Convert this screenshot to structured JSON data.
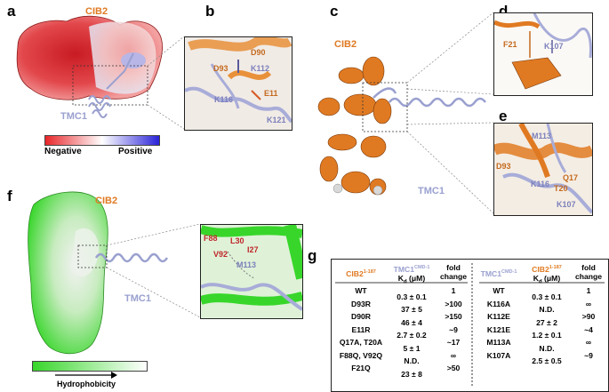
{
  "panels": {
    "a": "a",
    "b": "b",
    "c": "c",
    "d": "d",
    "e": "e",
    "f": "f",
    "g": "g"
  },
  "a": {
    "cib2": "CIB2",
    "tmc1": "TMC1",
    "colorbar": {
      "negative": "Negative",
      "positive": "Positive",
      "colors": [
        "#e8262a",
        "#ffffff",
        "#2a23d8"
      ]
    }
  },
  "b": {
    "residues": [
      "D90",
      "D93",
      "K112",
      "E11",
      "K116",
      "K121"
    ]
  },
  "c": {
    "cib2": "CIB2",
    "tmc1": "TMC1"
  },
  "d": {
    "residues": [
      "F21",
      "K107"
    ]
  },
  "e": {
    "residues": [
      "M113",
      "D93",
      "K116",
      "Q17",
      "T20",
      "K107"
    ]
  },
  "f": {
    "cib2": "CIB2",
    "tmc1": "TMC1",
    "residues": [
      "F88",
      "L30",
      "I27",
      "V92",
      "M113"
    ],
    "colorbar": {
      "label": "Hydrophobicity",
      "colors": [
        "#38d62b",
        "#ffffff"
      ]
    }
  },
  "g": {
    "left": {
      "headers": {
        "construct": "CIB2",
        "construct_sup": "1-187",
        "partner": "TMC1",
        "partner_sup": "CMD-1",
        "kd": "K",
        "kd_sub": "d",
        "kd_unit": " (μM)",
        "fold": "fold change"
      },
      "rows": [
        {
          "mut": "WT",
          "kd": "0.3 ± 0.1",
          "fold": "1"
        },
        {
          "mut": "D93R",
          "kd": "37 ± 5",
          "fold": ">100"
        },
        {
          "mut": "D90R",
          "kd": "46 ± 4",
          "fold": ">150"
        },
        {
          "mut": "E11R",
          "kd": "2.7 ± 0.2",
          "fold": "~9"
        },
        {
          "mut": "Q17A, T20A",
          "kd": "5 ± 1",
          "fold": "~17"
        },
        {
          "mut": "F88Q, V92Q",
          "kd": "N.D.",
          "fold": "∞"
        },
        {
          "mut": "F21Q",
          "kd": "23 ± 8",
          "fold": ">50"
        }
      ]
    },
    "right": {
      "headers": {
        "construct": "TMC1",
        "construct_sup": "CMD-1",
        "partner": "CIB2",
        "partner_sup": "1-187",
        "kd": "K",
        "kd_sub": "d",
        "kd_unit": " (μM)",
        "fold": "fold change"
      },
      "rows": [
        {
          "mut": "WT",
          "kd": "0.3 ± 0.1",
          "fold": "1"
        },
        {
          "mut": "K116A",
          "kd": "N.D.",
          "fold": "∞"
        },
        {
          "mut": "K112E",
          "kd": "27 ± 2",
          "fold": ">90"
        },
        {
          "mut": "K121E",
          "kd": "1.2 ± 0.1",
          "fold": "~4"
        },
        {
          "mut": "M113A",
          "kd": "N.D.",
          "fold": "∞"
        },
        {
          "mut": "K107A",
          "kd": "2.5 ± 0.5",
          "fold": "~9"
        }
      ]
    }
  }
}
